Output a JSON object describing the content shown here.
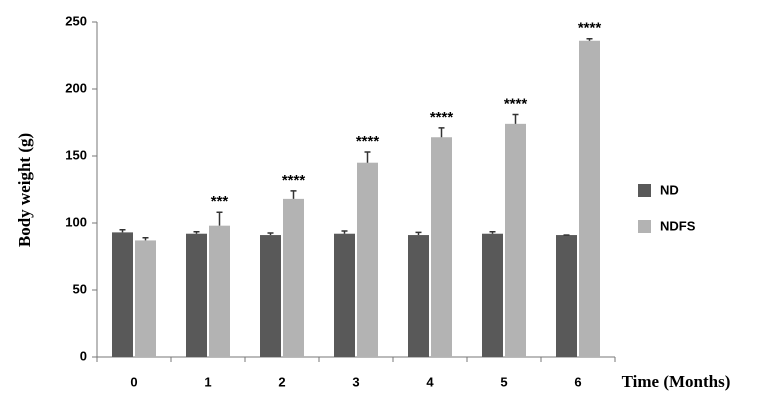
{
  "chart_data": {
    "type": "bar",
    "y_label": "Body weight (g)",
    "x_label": "Time (Months)",
    "categories": [
      "0",
      "1",
      "2",
      "3",
      "4",
      "5",
      "6"
    ],
    "series": [
      {
        "name": "ND",
        "color": "#595959",
        "values": [
          93,
          92,
          91,
          92,
          91,
          92,
          91
        ],
        "errors": [
          2,
          1.5,
          1.5,
          2,
          2,
          1.5,
          0
        ]
      },
      {
        "name": "NDFS",
        "color": "#b3b3b3",
        "values": [
          87,
          98,
          118,
          145,
          164,
          174,
          236
        ],
        "errors": [
          2,
          10,
          6,
          8,
          7,
          7,
          1.5
        ],
        "annotations": [
          null,
          "***",
          "****",
          "****",
          "****",
          "****",
          "****"
        ]
      }
    ],
    "ylim": [
      0,
      250
    ],
    "yticks": [
      0,
      50,
      100,
      150,
      200,
      250
    ],
    "legend": "right"
  }
}
